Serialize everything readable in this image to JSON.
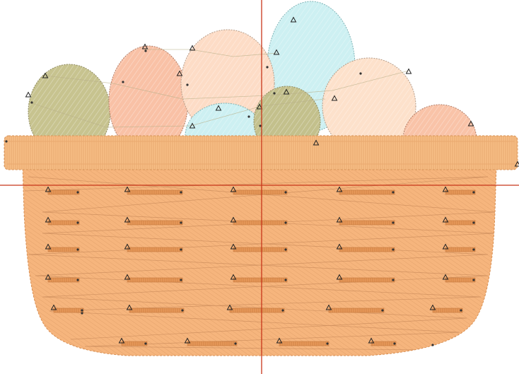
{
  "canvas": {
    "background": "#ffffff",
    "guide_color": "#c8361a"
  },
  "colors": {
    "egg_olive": "#c7c38f",
    "egg_peach": "#f9c1a6",
    "egg_cream": "#fdd9c1",
    "egg_blue": "#ccf1f3",
    "basket": "#f6b57d",
    "basket_rim": "#f7be85",
    "stitch": "#d9874a",
    "outline": "#9a9a9a"
  },
  "eggs": [
    {
      "id": "egg-olive-left",
      "color": "#c7c38f"
    },
    {
      "id": "egg-peach-left",
      "color": "#f9c1a6"
    },
    {
      "id": "egg-cream-center",
      "color": "#fddcc6"
    },
    {
      "id": "egg-blue-tall",
      "color": "#cdf0f2"
    },
    {
      "id": "egg-cream-right",
      "color": "#fde1cb"
    },
    {
      "id": "egg-blue-small",
      "color": "#cdf0f2"
    },
    {
      "id": "egg-olive-small",
      "color": "#c3c08c"
    },
    {
      "id": "egg-peach-right",
      "color": "#f9c3a8"
    }
  ],
  "basket": {
    "rows": 6,
    "columns": 5
  }
}
